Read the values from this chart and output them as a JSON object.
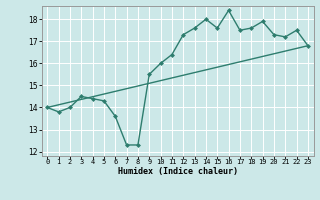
{
  "xlabel": "Humidex (Indice chaleur)",
  "ylabel": "",
  "background_color": "#cce8e8",
  "grid_color": "#ffffff",
  "line_color": "#2e7d6e",
  "xlim": [
    -0.5,
    23.5
  ],
  "ylim": [
    11.8,
    18.6
  ],
  "yticks": [
    12,
    13,
    14,
    15,
    16,
    17,
    18
  ],
  "xticks": [
    0,
    1,
    2,
    3,
    4,
    5,
    6,
    7,
    8,
    9,
    10,
    11,
    12,
    13,
    14,
    15,
    16,
    17,
    18,
    19,
    20,
    21,
    22,
    23
  ],
  "x": [
    0,
    1,
    2,
    3,
    4,
    5,
    6,
    7,
    8,
    9,
    10,
    11,
    12,
    13,
    14,
    15,
    16,
    17,
    18,
    19,
    20,
    21,
    22,
    23
  ],
  "y": [
    14.0,
    13.8,
    14.0,
    14.5,
    14.4,
    14.3,
    13.6,
    12.3,
    12.3,
    15.5,
    16.0,
    16.4,
    17.3,
    17.6,
    18.0,
    17.6,
    18.4,
    17.5,
    17.6,
    17.9,
    17.3,
    17.2,
    17.5,
    16.8
  ],
  "trend_x": [
    0,
    23
  ],
  "trend_y": [
    14.0,
    16.8
  ]
}
